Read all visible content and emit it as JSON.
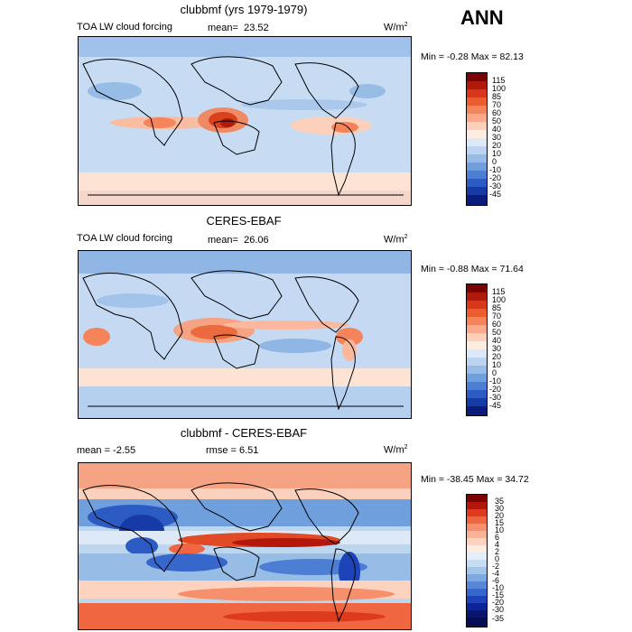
{
  "header": {
    "season": "ANN"
  },
  "panels": [
    {
      "title": "clubbmf (yrs 1979-1979)",
      "left_label": "TOA LW cloud forcing",
      "stat_label": "mean=",
      "stat_value": "23.52",
      "units": "W/m",
      "units_sup": "2",
      "minmax": "Min =  -0.28 Max =  82.13",
      "colorbar_labels": [
        "115",
        "100",
        "85",
        "70",
        "60",
        "50",
        "40",
        "30",
        "20",
        "10",
        "0",
        "-10",
        "-20",
        "-30",
        "-45"
      ]
    },
    {
      "title": "CERES-EBAF",
      "left_label": "TOA LW cloud forcing",
      "stat_label": "mean=",
      "stat_value": "26.06",
      "units": "W/m",
      "units_sup": "2",
      "minmax": "Min =  -0.88 Max =  71.64",
      "colorbar_labels": [
        "115",
        "100",
        "85",
        "70",
        "60",
        "50",
        "40",
        "30",
        "20",
        "10",
        "0",
        "-10",
        "-20",
        "-30",
        "-45"
      ]
    },
    {
      "title": "clubbmf - CERES-EBAF",
      "mean_text": "mean =   -2.55",
      "rmse_text": "rmse =   6.51",
      "units": "W/m",
      "units_sup": "2",
      "minmax": "Min = -38.45 Max =  34.72",
      "colorbar_labels": [
        "35",
        "30",
        "20",
        "15",
        "10",
        "6",
        "4",
        "2",
        "0",
        "-2",
        "-4",
        "-6",
        "-10",
        "-15",
        "-20",
        "-30",
        "-35"
      ]
    }
  ],
  "colors": {
    "field_scale": [
      "#7a0403",
      "#b01a0a",
      "#d7381c",
      "#eb5c2f",
      "#f5845a",
      "#fba98a",
      "#fdd0bb",
      "#fdece0",
      "#dde9f7",
      "#bcd4ef",
      "#97bce6",
      "#6f9fdc",
      "#4c7fd3",
      "#2d5bc4",
      "#163aa6",
      "#0a1d7a"
    ],
    "diff_scale": [
      "#7a0403",
      "#b3170c",
      "#dd3a1e",
      "#f06640",
      "#f68f6c",
      "#fab195",
      "#fdd2bf",
      "#feebe0",
      "#e3eef9",
      "#c5dcf1",
      "#a4c5ea",
      "#7ea8e0",
      "#5787d6",
      "#3767cb",
      "#1c44b8",
      "#0c259a",
      "#0a1570",
      "#070d54"
    ],
    "land_lines": "#000000"
  }
}
